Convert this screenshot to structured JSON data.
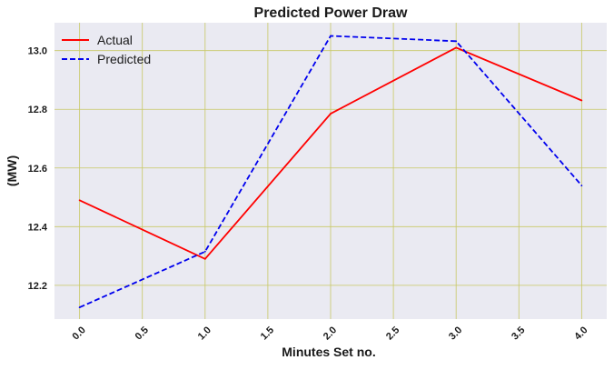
{
  "chart_data": {
    "type": "line",
    "title": "Predicted Power Draw",
    "xlabel": "Minutes Set no.",
    "ylabel": "(MW)",
    "x": [
      0,
      1,
      2,
      3,
      4
    ],
    "xlim": [
      -0.2,
      4.2
    ],
    "ylim": [
      12.085,
      13.095
    ],
    "xticks": [
      "0.0",
      "0.5",
      "1.0",
      "1.5",
      "2.0",
      "2.5",
      "3.0",
      "3.5",
      "4.0"
    ],
    "yticks": [
      "12.2",
      "12.4",
      "12.6",
      "12.8",
      "13.0"
    ],
    "grid": true,
    "legend_position": "top-left",
    "background_color": "#eaeaf2",
    "grid_color": "#c8c864",
    "series": [
      {
        "name": "Actual",
        "values": [
          12.49,
          12.29,
          12.785,
          13.01,
          12.83
        ],
        "color": "#ff0000",
        "style": "solid"
      },
      {
        "name": "Predicted",
        "values": [
          12.125,
          12.315,
          13.05,
          13.032,
          12.54
        ],
        "color": "#0000ee",
        "style": "dashed"
      }
    ]
  }
}
